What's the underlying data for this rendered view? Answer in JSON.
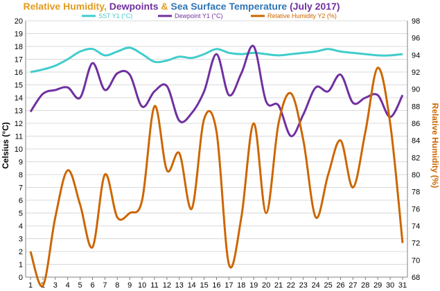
{
  "chart_data": {
    "type": "line",
    "title_parts": [
      {
        "text": "Relative Humidity",
        "color": "#E39A1B"
      },
      {
        "text": ", ",
        "color": "#E39A1B"
      },
      {
        "text": "Dewpoints",
        "color": "#7030A0"
      },
      {
        "text": " & ",
        "color": "#E39A1B"
      },
      {
        "text": "Sea Surface Temperature",
        "color": "#2E75B6"
      },
      {
        "text": " (July 2017)",
        "color": "#7030A0"
      }
    ],
    "x": [
      1,
      2,
      3,
      4,
      5,
      6,
      7,
      8,
      9,
      10,
      11,
      12,
      13,
      14,
      15,
      16,
      17,
      18,
      19,
      20,
      21,
      22,
      23,
      24,
      25,
      26,
      27,
      28,
      29,
      30,
      31
    ],
    "xlim": [
      1,
      31
    ],
    "ylabel": "Celsius (°C)",
    "ylim": [
      0,
      20
    ],
    "y2label": "Relative Humidity (%)",
    "y2lim": [
      68,
      98
    ],
    "grid": true,
    "legend_placement": "top",
    "series": [
      {
        "name": "SST Y1 (°C)",
        "axis": "left",
        "color": "#40CCCC",
        "values": [
          16.0,
          16.2,
          16.5,
          17.0,
          17.6,
          17.8,
          17.3,
          17.6,
          17.9,
          17.4,
          16.8,
          16.9,
          17.2,
          17.1,
          17.4,
          17.8,
          17.5,
          17.4,
          17.5,
          17.4,
          17.3,
          17.4,
          17.5,
          17.6,
          17.8,
          17.6,
          17.5,
          17.4,
          17.3,
          17.3,
          17.4
        ]
      },
      {
        "name": "Dewpoint Y1 (°C)",
        "axis": "left",
        "color": "#7030A0",
        "values": [
          12.9,
          14.3,
          14.6,
          14.8,
          14.0,
          16.7,
          14.6,
          15.9,
          15.8,
          13.3,
          14.5,
          14.9,
          12.2,
          12.8,
          14.5,
          17.4,
          14.2,
          15.9,
          18.0,
          13.7,
          13.4,
          11.0,
          12.7,
          14.8,
          14.5,
          15.8,
          13.6,
          14.0,
          14.2,
          12.5,
          14.2
        ]
      },
      {
        "name": "Relative Humidity Y2 (%)",
        "axis": "right",
        "color": "#CC6600",
        "values": [
          71,
          67,
          75,
          80.5,
          76.5,
          71.5,
          80,
          75,
          75.5,
          77,
          88,
          80.5,
          82.5,
          76,
          86.5,
          85,
          69.5,
          75,
          86,
          75.5,
          86,
          89.5,
          84,
          75,
          80,
          84,
          78.5,
          85,
          92.5,
          86,
          72
        ]
      }
    ]
  }
}
